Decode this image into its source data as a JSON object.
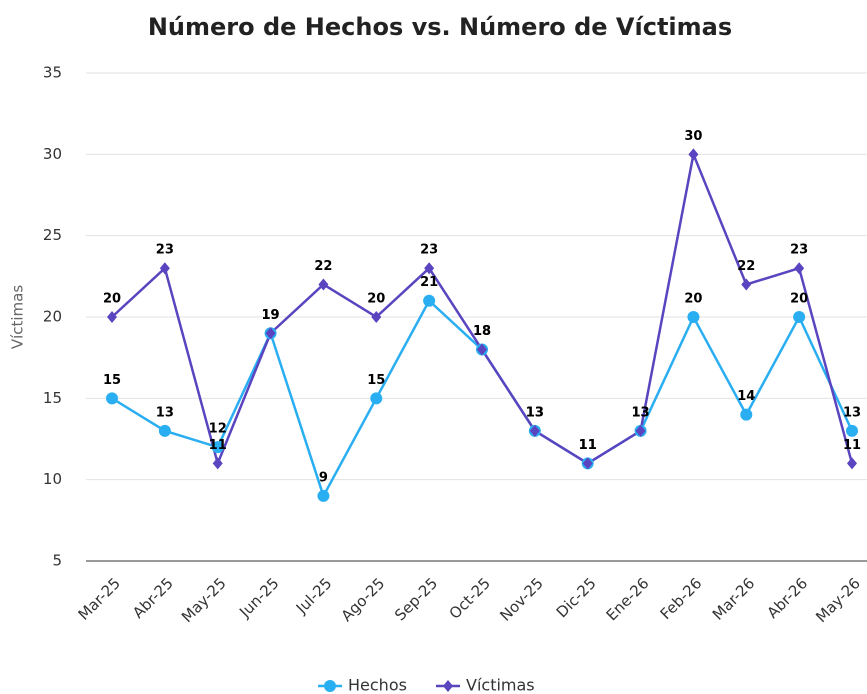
{
  "chart_data": {
    "type": "line",
    "title": "Número de Hechos vs. Número de Víctimas",
    "y_label": "Víctimas",
    "categories": [
      "Mar-25",
      "Abr-25",
      "May-25",
      "Jun-25",
      "Jul-25",
      "Ago-25",
      "Sep-25",
      "Oct-25",
      "Nov-25",
      "Dic-25",
      "Ene-26",
      "Feb-26",
      "Mar-26",
      "Abr-26",
      "May-26"
    ],
    "series": [
      {
        "name": "Hechos",
        "color": "#2aaef2",
        "marker": "circle",
        "values": [
          15,
          13,
          12,
          19,
          9,
          15,
          21,
          18,
          13,
          11,
          13,
          20,
          14,
          20,
          13
        ]
      },
      {
        "name": "Víctimas",
        "color": "#5a44bf",
        "marker": "diamond",
        "values": [
          20,
          23,
          11,
          19,
          22,
          20,
          23,
          18,
          13,
          11,
          13,
          30,
          22,
          23,
          11
        ]
      }
    ],
    "ylim": [
      5,
      35
    ],
    "yticks": [
      5,
      10,
      15,
      20,
      25,
      30,
      35
    ],
    "grid": true,
    "legend": "bottom"
  }
}
